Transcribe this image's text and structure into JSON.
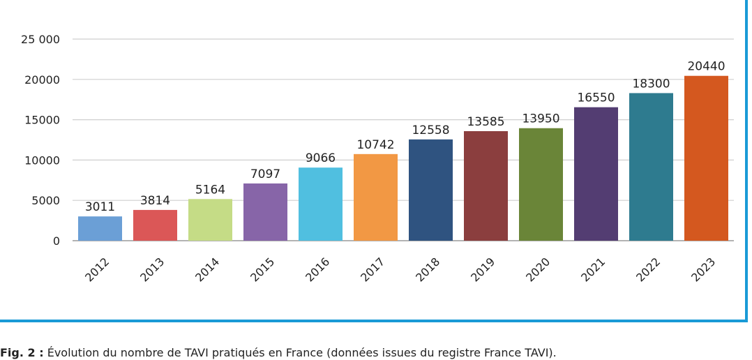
{
  "chart_data": {
    "type": "bar",
    "categories": [
      "2012",
      "2013",
      "2014",
      "2015",
      "2016",
      "2017",
      "2018",
      "2019",
      "2020",
      "2021",
      "2022",
      "2023"
    ],
    "values": [
      3011,
      3814,
      5164,
      7097,
      9066,
      10742,
      12558,
      13585,
      13950,
      16550,
      18300,
      20440
    ],
    "data_labels": [
      "3011",
      "3814",
      "5164",
      "7097",
      "9066",
      "10742",
      "12558",
      "13585",
      "13950",
      "16550",
      "18300",
      "20440"
    ],
    "ylim": [
      0,
      25000
    ],
    "yticks": [
      {
        "value": 0,
        "label": "0"
      },
      {
        "value": 5000,
        "label": "5000"
      },
      {
        "value": 10000,
        "label": "10000"
      },
      {
        "value": 15000,
        "label": "15000"
      },
      {
        "value": 20000,
        "label": "20000"
      },
      {
        "value": 25000,
        "label": "25 000"
      }
    ],
    "colors": [
      "#6b9fd6",
      "#db5757",
      "#c5dc86",
      "#8765a8",
      "#50bfe0",
      "#f29844",
      "#2f5380",
      "#8b3e3e",
      "#6a8538",
      "#533d72",
      "#2e7b8f",
      "#d4581f"
    ],
    "grid": true,
    "xlabel_rotation": "-45deg",
    "title": "",
    "xlabel": "",
    "ylabel": ""
  },
  "caption": {
    "prefix": "Fig. 2 :",
    "text": " Évolution du nombre de TAVI pratiqués en France (données issues du registre France TAVI)."
  },
  "frame_color": "#1a9ad6"
}
